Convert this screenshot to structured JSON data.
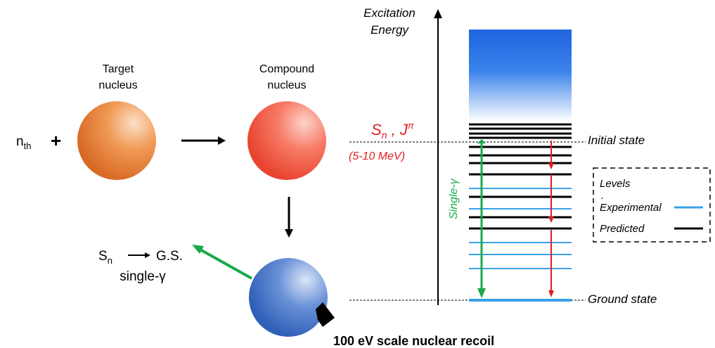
{
  "left": {
    "neutron_base": "n",
    "neutron_sub": "th",
    "plus": "+",
    "target_line1": "Target",
    "target_line2": "nucleus",
    "compound_line1": "Compound",
    "compound_line2": "nucleus",
    "sn_base": "S",
    "sn_sub": "n",
    "gs_label": "G.S.",
    "single_gamma": "single-γ",
    "recoil": "100 eV scale nuclear recoil"
  },
  "scheme": {
    "axis_line1": "Excitation",
    "axis_line2": "Energy",
    "sn_base": "S",
    "sn_sub": "n",
    "sn_sep": " , ",
    "jpi_base": "J",
    "jpi_sup": "π",
    "energy_range": "(5-10 MeV)",
    "single_label": "Single-γ",
    "initial_state": "Initial state",
    "ground_state": "Ground state"
  },
  "legend": {
    "title": "Levels",
    "dot": ".",
    "experimental": "Experimental",
    "predicted": "Predicted"
  },
  "colors": {
    "target": "#e8803a",
    "compound": "#f45a47",
    "recoil": "#3f70c8",
    "gamma_green": "#1aa84a",
    "gamma_red": "#e02020",
    "experimental_level": "#3aa0e8",
    "predicted_level": "#000000",
    "accent_red": "#e02020"
  }
}
